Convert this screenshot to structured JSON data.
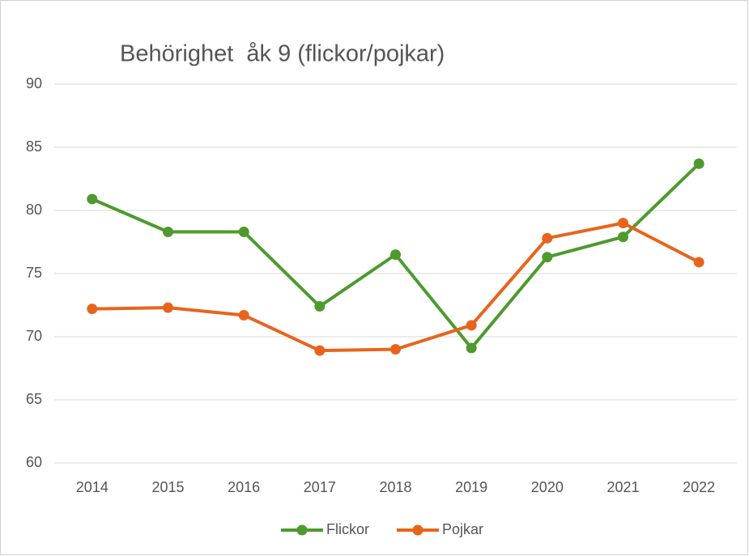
{
  "chart_data": {
    "type": "line",
    "title": "Behörighet  åk 9 (flickor/pojkar)",
    "categories": [
      "2014",
      "2015",
      "2016",
      "2017",
      "2018",
      "2019",
      "2020",
      "2021",
      "2022"
    ],
    "series": [
      {
        "name": "Flickor",
        "color": "#4e9a2e",
        "values": [
          80.9,
          78.3,
          78.3,
          72.4,
          76.5,
          69.1,
          76.3,
          77.9,
          83.7
        ]
      },
      {
        "name": "Pojkar",
        "color": "#e8641c",
        "values": [
          72.2,
          72.3,
          71.7,
          68.9,
          69.0,
          70.9,
          77.8,
          79.0,
          75.9
        ]
      }
    ],
    "ylim": [
      60,
      90
    ],
    "yticks": [
      60,
      65,
      70,
      75,
      80,
      85,
      90
    ],
    "grid": true,
    "legend": "bottom"
  }
}
